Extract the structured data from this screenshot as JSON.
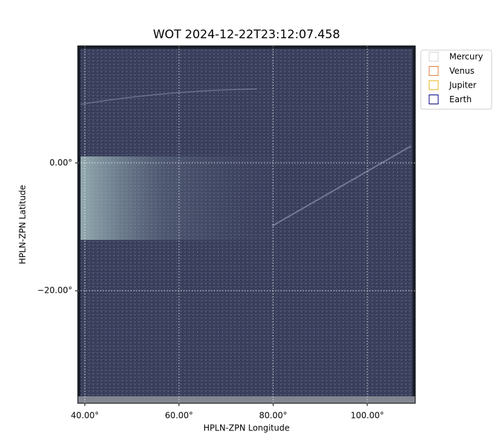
{
  "chart_data": {
    "type": "image",
    "title": "WOT 2024-12-22T23:12:07.458",
    "x_label": "HPLN-ZPN Longitude",
    "y_label": "HPLN-ZPN Latitude",
    "xlim": [
      38.5,
      110.2
    ],
    "ylim": [
      -37.6,
      18.3
    ],
    "xticks": [
      {
        "value": 40,
        "label": "40.00°"
      },
      {
        "value": 60,
        "label": "60.00°"
      },
      {
        "value": 80,
        "label": "80.00°"
      },
      {
        "value": 100,
        "label": "100.00°"
      }
    ],
    "yticks": [
      {
        "value": 0,
        "label": "0.00°"
      },
      {
        "value": -20,
        "label": "−20.00°"
      }
    ],
    "grid": true,
    "legend": "upper right outside",
    "series": [
      {
        "name": "Mercury",
        "color": "#d3d3d3"
      },
      {
        "name": "Venus",
        "color": "#e07b39"
      },
      {
        "name": "Jupiter",
        "color": "#e8b00f"
      },
      {
        "name": "Earth",
        "color": "#000080"
      }
    ]
  }
}
